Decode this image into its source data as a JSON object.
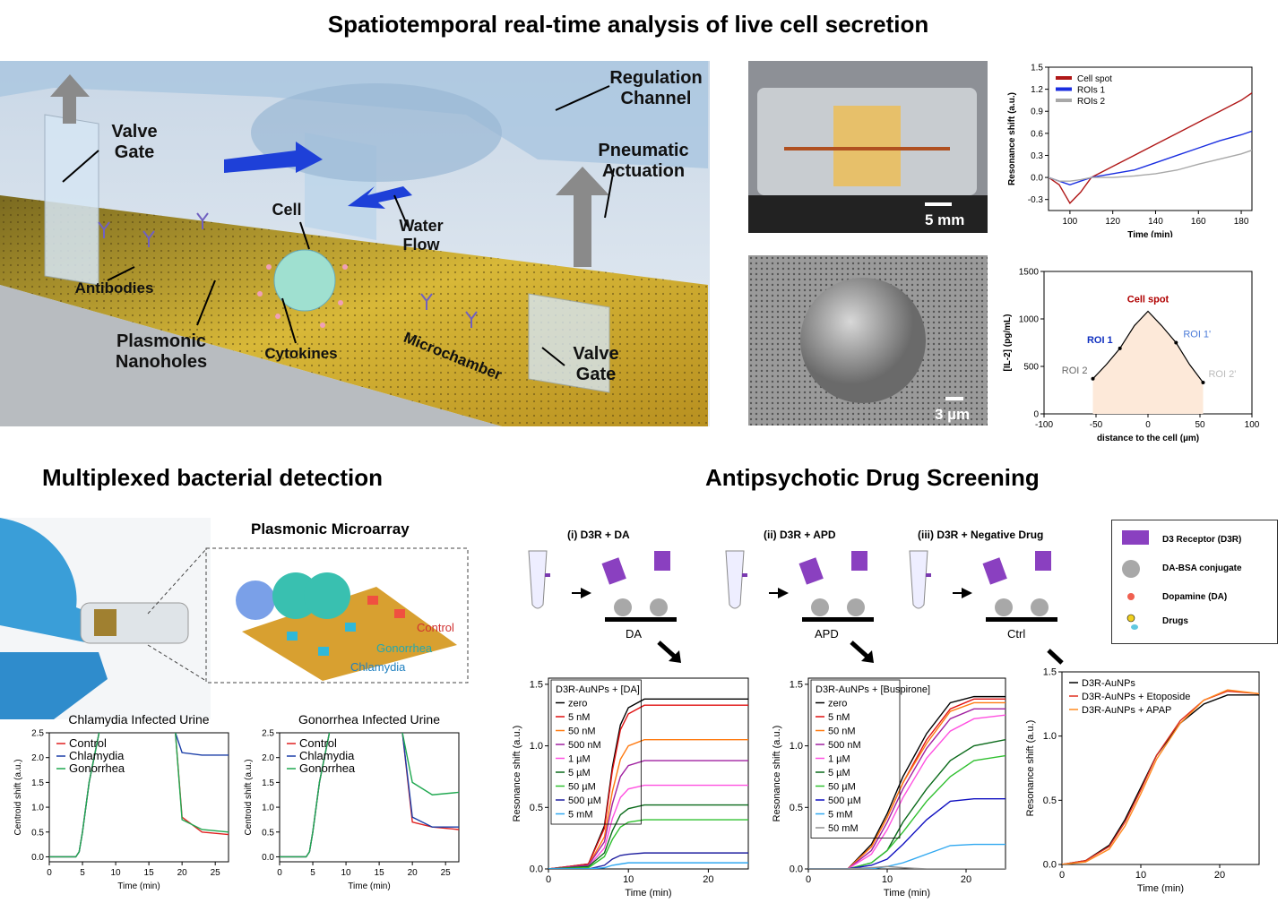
{
  "title": "Spatiotemporal real-time analysis of live cell secretion",
  "sections": [
    "Multiplexed bacterial detection",
    "Antipsychotic Drug Screening"
  ],
  "schematic": {
    "labels": [
      "Regulation Channel",
      "Valve Gate",
      "Pneumatic Actuation",
      "Cell",
      "Water Flow",
      "Antibodies",
      "Plasmonic Nanoholes",
      "Cytokines",
      "Microchamber",
      "Valve Gate"
    ]
  },
  "photos": {
    "chip_scale": "5 mm",
    "sem_scale": "3 µm"
  },
  "microarray": {
    "title": "Plasmonic Microarray",
    "labels": [
      "Control",
      "Gonorrhea",
      "Chlamydia"
    ]
  },
  "drug_screening": {
    "steps": [
      {
        "title": "(i) D3R + DA",
        "label": "DA"
      },
      {
        "title": "(ii) D3R + APD",
        "label": "APD"
      },
      {
        "title": "(iii) D3R + Negative Drug",
        "label": "Ctrl"
      }
    ],
    "legend": [
      "D3 Receptor (D3R)",
      "DA-BSA conjugate",
      "Dopamine (DA)",
      "Drugs"
    ]
  },
  "chart_data": [
    {
      "type": "line",
      "xlabel": "Time (min)",
      "ylabel": "Resonance shift (a.u.)",
      "legend": "upper left",
      "legend_style": "thick",
      "x": [
        90,
        95,
        100,
        105,
        110,
        120,
        130,
        140,
        150,
        160,
        170,
        180,
        185
      ],
      "xlim": [
        90,
        185
      ],
      "xticks": [
        100,
        120,
        140,
        160,
        180
      ],
      "ylim": [
        -0.45,
        1.5
      ],
      "yticks": [
        -0.3,
        {
          "value": 0,
          "label": "0.0"
        },
        0.3,
        0.6,
        0.9,
        1.2,
        1.5
      ],
      "series": [
        {
          "name": "Cell spot",
          "color": "#b01818",
          "values": [
            0,
            -0.1,
            -0.35,
            -0.2,
            0.0,
            0.15,
            0.3,
            0.45,
            0.6,
            0.75,
            0.9,
            1.05,
            1.15
          ]
        },
        {
          "name": "ROIs 1",
          "color": "#1a2ee0",
          "values": [
            0,
            -0.05,
            -0.1,
            -0.05,
            0,
            0.05,
            0.1,
            0.2,
            0.3,
            0.4,
            0.5,
            0.58,
            0.63
          ]
        },
        {
          "name": "ROIs 2",
          "color": "#a8a8a8",
          "values": [
            0,
            -0.05,
            -0.05,
            -0.03,
            0,
            0,
            0.02,
            0.05,
            0.1,
            0.18,
            0.25,
            0.32,
            0.37
          ]
        }
      ]
    },
    {
      "type": "area",
      "xlabel": "distance to the cell (µm)",
      "ylabel": "[IL-2] (pg/mL)",
      "area_color": "#fde9d9",
      "x": [
        -53,
        -40,
        -27,
        -13,
        0,
        13,
        27,
        40,
        53
      ],
      "xlim": [
        -100,
        100
      ],
      "xticks": [
        -100,
        -50,
        0,
        50,
        100
      ],
      "ylim": [
        0,
        1500
      ],
      "yticks": [
        0,
        500,
        1000,
        1500
      ],
      "series": [
        {
          "color": "#000000",
          "values": [
            370,
            520,
            690,
            930,
            1080,
            930,
            750,
            520,
            330
          ]
        }
      ],
      "annotations": [
        "Cell spot",
        "ROI 1",
        "ROI 1'",
        "ROI 2",
        "ROI 2'"
      ]
    },
    {
      "type": "line",
      "title": "Chlamydia Infected Urine",
      "xlabel": "Time (min)",
      "ylabel": "Centroid shift (a.u.)",
      "legend": "upper left",
      "x": [
        0,
        4,
        4.5,
        5,
        6,
        7.5,
        17.5,
        19,
        20,
        23,
        27
      ],
      "xlim": [
        0,
        27
      ],
      "xticks": [
        0,
        5,
        10,
        15,
        20,
        25
      ],
      "ylim": [
        -0.1,
        2.5
      ],
      "yticks": [
        {
          "value": 0,
          "label": "0.0"
        },
        0.5,
        {
          "value": 1,
          "label": "1.0"
        },
        1.5,
        {
          "value": 2,
          "label": "2.0"
        },
        2.5
      ],
      "series": [
        {
          "name": "Control",
          "color": "#e02020",
          "values": [
            0,
            0,
            0.1,
            0.5,
            1.5,
            2.5,
            null,
            2.5,
            0.8,
            0.5,
            0.45
          ]
        },
        {
          "name": "Chlamydia",
          "color": "#1a3ea8",
          "values": [
            0,
            0,
            0.1,
            0.5,
            1.5,
            2.5,
            null,
            2.5,
            2.1,
            2.05,
            2.05
          ]
        },
        {
          "name": "Gonorrhea",
          "color": "#20a850",
          "values": [
            0,
            0,
            0.1,
            0.5,
            1.5,
            2.5,
            null,
            2.5,
            0.75,
            0.55,
            0.5
          ]
        }
      ]
    },
    {
      "type": "line",
      "title": "Gonorrhea Infected Urine",
      "xlabel": "Time (min)",
      "ylabel": "Centroid shift (a.u.)",
      "legend": "upper left",
      "x": [
        0,
        4,
        4.5,
        5,
        6,
        7.5,
        17.5,
        18.5,
        20,
        23,
        27
      ],
      "xlim": [
        0,
        27
      ],
      "xticks": [
        0,
        5,
        10,
        15,
        20,
        25
      ],
      "ylim": [
        -0.1,
        2.5
      ],
      "yticks": [
        {
          "value": 0,
          "label": "0.0"
        },
        0.5,
        {
          "value": 1,
          "label": "1.0"
        },
        1.5,
        {
          "value": 2,
          "label": "2.0"
        },
        2.5
      ],
      "series": [
        {
          "name": "Control",
          "color": "#e02020",
          "values": [
            0,
            0,
            0.1,
            0.5,
            1.5,
            2.5,
            null,
            2.5,
            0.7,
            0.6,
            0.55
          ]
        },
        {
          "name": "Chlamydia",
          "color": "#1a3ea8",
          "values": [
            0,
            0,
            0.1,
            0.5,
            1.5,
            2.5,
            null,
            2.5,
            0.8,
            0.6,
            0.6
          ]
        },
        {
          "name": "Gonorrhea",
          "color": "#20a850",
          "values": [
            0,
            0,
            0.1,
            0.5,
            1.5,
            2.5,
            null,
            2.5,
            1.5,
            1.25,
            1.3
          ]
        }
      ]
    },
    {
      "type": "line",
      "legend_title": "D3R-AuNPs + [DA]",
      "xlabel": "Time (min)",
      "ylabel": "Resonance shift (a.u.)",
      "legend": "upper left",
      "legend_box": true,
      "x": [
        0,
        5,
        7,
        8,
        9,
        10,
        12,
        15,
        25
      ],
      "xlim": [
        0,
        25
      ],
      "xticks": [
        0,
        10,
        20
      ],
      "ylim": [
        0,
        1.55
      ],
      "yticks": [
        {
          "value": 0,
          "label": "0.0"
        },
        0.5,
        {
          "value": 1,
          "label": "1.0"
        },
        1.5
      ],
      "series": [
        {
          "name": "zero",
          "color": "#000000",
          "values": [
            0,
            0.04,
            0.35,
            0.83,
            1.17,
            1.31,
            1.38,
            1.38,
            1.38
          ]
        },
        {
          "name": "5 nM",
          "color": "#e01010",
          "values": [
            0,
            0.04,
            0.33,
            0.8,
            1.13,
            1.26,
            1.33,
            1.33,
            1.33
          ]
        },
        {
          "name": "50 nM",
          "color": "#ff7a10",
          "values": [
            0,
            0.03,
            0.26,
            0.63,
            0.89,
            1.0,
            1.05,
            1.05,
            1.05
          ]
        },
        {
          "name": "500 nM",
          "color": "#a020a0",
          "values": [
            0,
            0.03,
            0.22,
            0.53,
            0.75,
            0.84,
            0.88,
            0.88,
            0.88
          ]
        },
        {
          "name": "1 µM",
          "color": "#ff50e0",
          "values": [
            0,
            0.02,
            0.17,
            0.41,
            0.58,
            0.65,
            0.68,
            0.68,
            0.68
          ]
        },
        {
          "name": "5 µM",
          "color": "#0a6a1a",
          "values": [
            0,
            0.02,
            0.13,
            0.31,
            0.44,
            0.49,
            0.52,
            0.52,
            0.52
          ]
        },
        {
          "name": "50 µM",
          "color": "#30c030",
          "values": [
            0,
            0.01,
            0.1,
            0.24,
            0.34,
            0.38,
            0.4,
            0.4,
            0.4
          ]
        },
        {
          "name": "500 µM",
          "color": "#2020a0",
          "values": [
            0,
            0,
            0.03,
            0.08,
            0.11,
            0.12,
            0.13,
            0.13,
            0.13
          ]
        },
        {
          "name": "5 mM",
          "color": "#30a8f0",
          "values": [
            0,
            0,
            0.01,
            0.03,
            0.04,
            0.05,
            0.05,
            0.05,
            0.05
          ]
        }
      ]
    },
    {
      "type": "line",
      "legend_title": "D3R-AuNPs + [Buspirone]",
      "xlabel": "Time (min)",
      "ylabel": "Resonance shift (a.u.)",
      "legend": "upper left",
      "legend_box": true,
      "x": [
        0,
        5,
        8,
        10,
        12,
        15,
        18,
        21,
        25
      ],
      "xlim": [
        0,
        25
      ],
      "xticks": [
        0,
        10,
        20
      ],
      "ylim": [
        0,
        1.55
      ],
      "yticks": [
        {
          "value": 0,
          "label": "0.0"
        },
        0.5,
        {
          "value": 1,
          "label": "1.0"
        },
        1.5
      ],
      "series": [
        {
          "name": "zero",
          "color": "#000000",
          "values": [
            0,
            0,
            0.2,
            0.45,
            0.75,
            1.1,
            1.35,
            1.4,
            1.4
          ]
        },
        {
          "name": "5 nM",
          "color": "#e01010",
          "values": [
            0,
            0,
            0.18,
            0.42,
            0.7,
            1.05,
            1.3,
            1.38,
            1.38
          ]
        },
        {
          "name": "50 nM",
          "color": "#ff7a10",
          "values": [
            0,
            0,
            0.18,
            0.42,
            0.7,
            1.02,
            1.28,
            1.35,
            1.35
          ]
        },
        {
          "name": "500 nM",
          "color": "#a020a0",
          "values": [
            0,
            0,
            0.15,
            0.38,
            0.65,
            0.98,
            1.22,
            1.3,
            1.3
          ]
        },
        {
          "name": "1 µM",
          "color": "#ff50e0",
          "values": [
            0,
            0,
            0.12,
            0.32,
            0.58,
            0.9,
            1.12,
            1.22,
            1.25
          ]
        },
        {
          "name": "5 µM",
          "color": "#0a6a1a",
          "values": [
            0,
            0,
            0.05,
            0.15,
            0.38,
            0.65,
            0.88,
            1.0,
            1.05
          ]
        },
        {
          "name": "50 µM",
          "color": "#30c030",
          "values": [
            0,
            0,
            0.05,
            0.15,
            0.3,
            0.55,
            0.75,
            0.88,
            0.92
          ]
        },
        {
          "name": "500 µM",
          "color": "#1010c0",
          "values": [
            0,
            0,
            0.03,
            0.08,
            0.2,
            0.4,
            0.55,
            0.57,
            0.57
          ]
        },
        {
          "name": "5 mM",
          "color": "#30a8f0",
          "values": [
            0,
            0,
            0,
            0.02,
            0.05,
            0.12,
            0.19,
            0.2,
            0.2
          ]
        },
        {
          "name": "50 mM",
          "color": "#909090",
          "values": [
            0,
            0,
            0.01,
            0.02,
            0.01,
            0,
            0,
            0,
            0
          ]
        }
      ]
    },
    {
      "type": "line",
      "xlabel": "Time (min)",
      "ylabel": "Resonance shift (a.u.)",
      "legend": "upper left",
      "x": [
        0,
        3,
        6,
        8,
        10,
        12,
        15,
        18,
        21,
        25
      ],
      "xlim": [
        0,
        25
      ],
      "xticks": [
        0,
        10,
        20
      ],
      "ylim": [
        0,
        1.5
      ],
      "yticks": [
        {
          "value": 0,
          "label": "0.0"
        },
        0.5,
        {
          "value": 1,
          "label": "1.0"
        },
        1.5
      ],
      "series": [
        {
          "name": "D3R-AuNPs",
          "color": "#000000",
          "values": [
            0,
            0.03,
            0.15,
            0.35,
            0.6,
            0.85,
            1.1,
            1.25,
            1.32,
            1.32
          ]
        },
        {
          "name": "D3R-AuNPs + Etoposide",
          "color": "#e03020",
          "values": [
            0,
            0.03,
            0.14,
            0.33,
            0.58,
            0.85,
            1.12,
            1.28,
            1.35,
            1.33
          ]
        },
        {
          "name": "D3R-AuNPs + APAP",
          "color": "#ff8a20",
          "values": [
            0,
            0.02,
            0.12,
            0.3,
            0.55,
            0.82,
            1.1,
            1.28,
            1.36,
            1.33
          ]
        }
      ]
    }
  ]
}
